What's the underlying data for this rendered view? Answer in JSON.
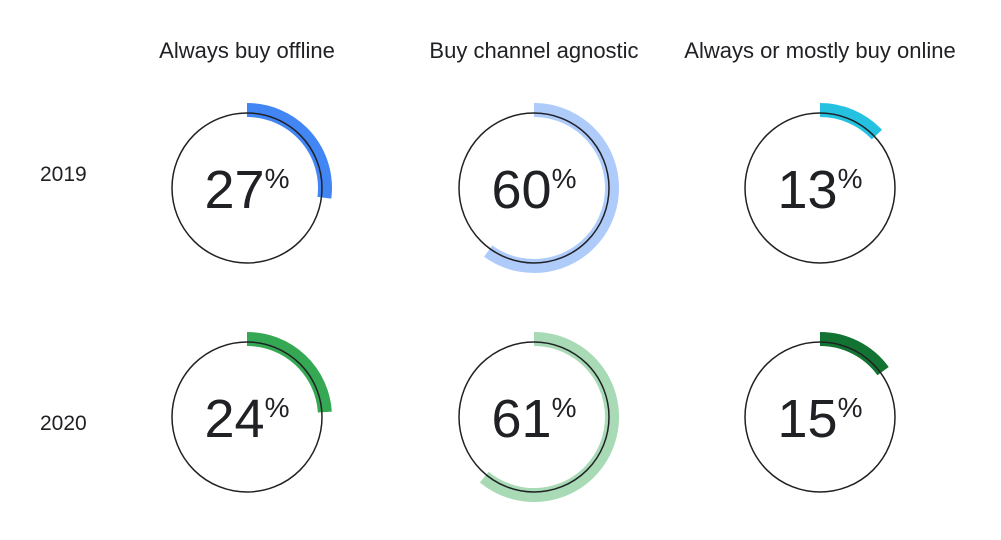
{
  "chart_data": {
    "type": "donut-grid",
    "columns": [
      "Always buy offline",
      "Buy channel agnostic",
      "Always or mostly buy online"
    ],
    "rows": [
      "2019",
      "2020"
    ],
    "values": [
      [
        27,
        60,
        13
      ],
      [
        24,
        61,
        15
      ]
    ],
    "unit": "%",
    "colors": [
      [
        "#4285f4",
        "#aecbfa",
        "#24c1e0"
      ],
      [
        "#34a853",
        "#a8dab5",
        "#137333"
      ]
    ]
  }
}
